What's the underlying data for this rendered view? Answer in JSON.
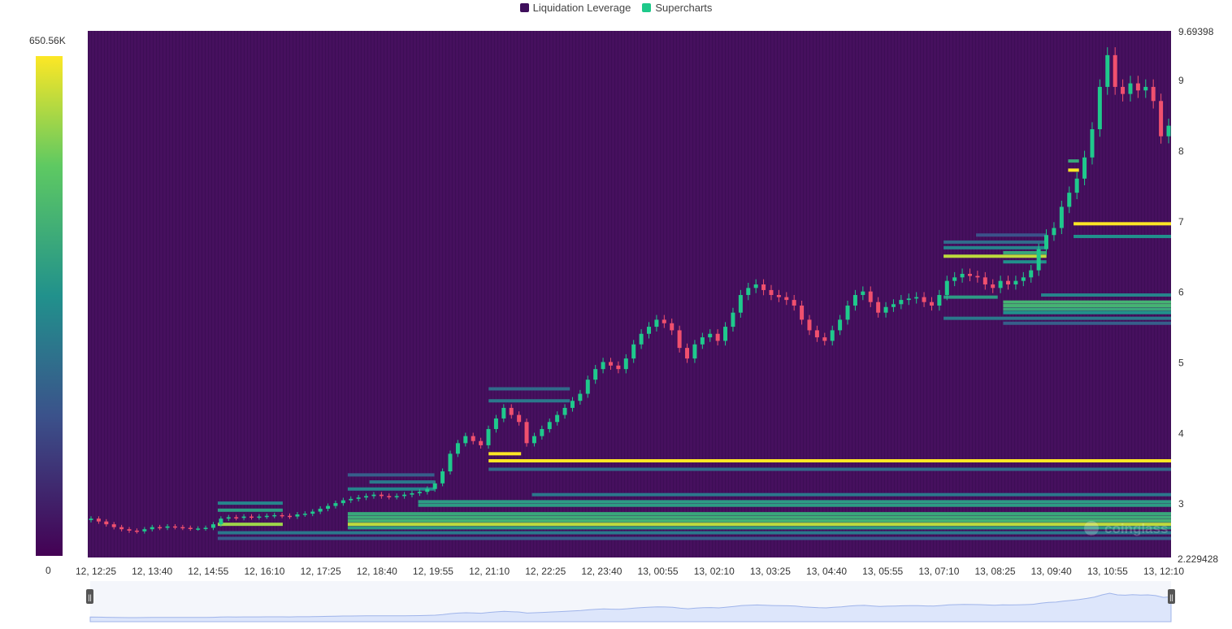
{
  "legend": {
    "items": [
      {
        "label": "Liquidation Leverage",
        "color": "#3f0f5c"
      },
      {
        "label": "Supercharts",
        "color": "#1ec98a"
      }
    ]
  },
  "colorbar": {
    "max_label": "650.56K",
    "min_label": "0",
    "colors": [
      "#440154",
      "#3b528b",
      "#21918c",
      "#5ec962",
      "#fde725"
    ]
  },
  "chart_data": {
    "type": "heatmap",
    "title": "",
    "x_tick_labels": [
      "12, 12:25",
      "12, 13:40",
      "12, 14:55",
      "12, 16:10",
      "12, 17:25",
      "12, 18:40",
      "12, 19:55",
      "12, 21:10",
      "12, 22:25",
      "12, 23:40",
      "13, 00:55",
      "13, 02:10",
      "13, 03:25",
      "13, 04:40",
      "13, 05:55",
      "13, 07:10",
      "13, 08:25",
      "13, 09:40",
      "13, 10:55",
      "13, 12:10"
    ],
    "y_tick_values": [
      9,
      8,
      7,
      6,
      5,
      4,
      3
    ],
    "y_max_label": "9.69398",
    "y_min_label": "2.229428",
    "ylim": [
      2.229428,
      9.69398
    ],
    "colorscale_range": [
      0,
      650560
    ],
    "price_path": [
      2.78,
      2.74,
      2.7,
      2.66,
      2.63,
      2.61,
      2.6,
      2.63,
      2.66,
      2.65,
      2.67,
      2.66,
      2.65,
      2.64,
      2.64,
      2.65,
      2.7,
      2.78,
      2.8,
      2.79,
      2.81,
      2.8,
      2.81,
      2.82,
      2.83,
      2.82,
      2.81,
      2.84,
      2.85,
      2.88,
      2.92,
      2.96,
      3.0,
      3.04,
      3.06,
      3.08,
      3.1,
      3.12,
      3.1,
      3.09,
      3.1,
      3.12,
      3.14,
      3.16,
      3.2,
      3.28,
      3.45,
      3.7,
      3.85,
      3.95,
      3.88,
      3.82,
      4.05,
      4.2,
      4.35,
      4.25,
      4.15,
      3.85,
      3.95,
      4.05,
      4.15,
      4.25,
      4.35,
      4.45,
      4.55,
      4.75,
      4.9,
      5.0,
      4.95,
      4.9,
      5.05,
      5.25,
      5.4,
      5.5,
      5.6,
      5.55,
      5.45,
      5.2,
      5.05,
      5.25,
      5.35,
      5.4,
      5.3,
      5.5,
      5.7,
      5.95,
      6.05,
      6.1,
      6.02,
      5.95,
      5.92,
      5.88,
      5.8,
      5.6,
      5.45,
      5.35,
      5.3,
      5.45,
      5.6,
      5.8,
      5.95,
      6.0,
      5.85,
      5.7,
      5.78,
      5.82,
      5.88,
      5.9,
      5.92,
      5.85,
      5.8,
      5.95,
      6.15,
      6.2,
      6.25,
      6.22,
      6.2,
      6.1,
      6.05,
      6.15,
      6.1,
      6.15,
      6.2,
      6.3,
      6.6,
      6.8,
      6.9,
      7.2,
      7.4,
      7.6,
      7.9,
      8.3,
      8.9,
      9.35,
      8.9,
      8.8,
      8.95,
      8.85,
      8.9,
      8.7,
      8.2,
      8.35
    ],
    "liquidation_bands": [
      {
        "price": 3.6,
        "x_start": 0.37,
        "x_end": 1.0,
        "intensity": 1.0
      },
      {
        "price": 3.48,
        "x_start": 0.37,
        "x_end": 1.0,
        "intensity": 0.35
      },
      {
        "price": 3.7,
        "x_start": 0.37,
        "x_end": 0.4,
        "intensity": 1.0
      },
      {
        "price": 4.62,
        "x_start": 0.37,
        "x_end": 0.445,
        "intensity": 0.35
      },
      {
        "price": 4.45,
        "x_start": 0.37,
        "x_end": 0.445,
        "intensity": 0.4
      },
      {
        "price": 3.12,
        "x_start": 0.41,
        "x_end": 1.0,
        "intensity": 0.4
      },
      {
        "price": 3.02,
        "x_start": 0.305,
        "x_end": 1.0,
        "intensity": 0.55
      },
      {
        "price": 2.97,
        "x_start": 0.305,
        "x_end": 1.0,
        "intensity": 0.55
      },
      {
        "price": 2.85,
        "x_start": 0.24,
        "x_end": 1.0,
        "intensity": 0.6
      },
      {
        "price": 2.8,
        "x_start": 0.24,
        "x_end": 1.0,
        "intensity": 0.62
      },
      {
        "price": 2.75,
        "x_start": 0.24,
        "x_end": 1.0,
        "intensity": 0.65
      },
      {
        "price": 2.7,
        "x_start": 0.24,
        "x_end": 1.0,
        "intensity": 0.9
      },
      {
        "price": 2.65,
        "x_start": 0.24,
        "x_end": 1.0,
        "intensity": 0.55
      },
      {
        "price": 2.58,
        "x_start": 0.12,
        "x_end": 1.0,
        "intensity": 0.4
      },
      {
        "price": 2.5,
        "x_start": 0.12,
        "x_end": 1.0,
        "intensity": 0.28
      },
      {
        "price": 3.4,
        "x_start": 0.24,
        "x_end": 0.32,
        "intensity": 0.3
      },
      {
        "price": 3.3,
        "x_start": 0.26,
        "x_end": 0.32,
        "intensity": 0.4
      },
      {
        "price": 3.2,
        "x_start": 0.24,
        "x_end": 0.32,
        "intensity": 0.45
      },
      {
        "price": 3.0,
        "x_start": 0.12,
        "x_end": 0.18,
        "intensity": 0.45
      },
      {
        "price": 2.9,
        "x_start": 0.12,
        "x_end": 0.18,
        "intensity": 0.55
      },
      {
        "price": 2.7,
        "x_start": 0.12,
        "x_end": 0.18,
        "intensity": 0.85
      },
      {
        "price": 5.95,
        "x_start": 0.88,
        "x_end": 1.0,
        "intensity": 0.45
      },
      {
        "price": 5.85,
        "x_start": 0.845,
        "x_end": 1.0,
        "intensity": 0.65
      },
      {
        "price": 5.8,
        "x_start": 0.845,
        "x_end": 1.0,
        "intensity": 0.65
      },
      {
        "price": 5.75,
        "x_start": 0.845,
        "x_end": 1.0,
        "intensity": 0.6
      },
      {
        "price": 5.7,
        "x_start": 0.845,
        "x_end": 1.0,
        "intensity": 0.5
      },
      {
        "price": 5.62,
        "x_start": 0.79,
        "x_end": 1.0,
        "intensity": 0.4
      },
      {
        "price": 5.55,
        "x_start": 0.845,
        "x_end": 1.0,
        "intensity": 0.3
      },
      {
        "price": 5.92,
        "x_start": 0.79,
        "x_end": 0.84,
        "intensity": 0.55
      },
      {
        "price": 6.8,
        "x_start": 0.82,
        "x_end": 0.885,
        "intensity": 0.25
      },
      {
        "price": 6.7,
        "x_start": 0.79,
        "x_end": 0.885,
        "intensity": 0.35
      },
      {
        "price": 6.62,
        "x_start": 0.79,
        "x_end": 0.885,
        "intensity": 0.45
      },
      {
        "price": 6.55,
        "x_start": 0.845,
        "x_end": 0.885,
        "intensity": 0.6
      },
      {
        "price": 6.5,
        "x_start": 0.79,
        "x_end": 0.885,
        "intensity": 0.9
      },
      {
        "price": 6.42,
        "x_start": 0.845,
        "x_end": 0.885,
        "intensity": 0.5
      },
      {
        "price": 6.96,
        "x_start": 0.91,
        "x_end": 1.0,
        "intensity": 1.0
      },
      {
        "price": 6.78,
        "x_start": 0.91,
        "x_end": 1.0,
        "intensity": 0.5
      },
      {
        "price": 7.72,
        "x_start": 0.905,
        "x_end": 0.915,
        "intensity": 1.0
      },
      {
        "price": 7.85,
        "x_start": 0.905,
        "x_end": 0.915,
        "intensity": 0.6
      }
    ]
  },
  "watermark": "coinglass",
  "navigator": {
    "left_handle": "||",
    "right_handle": "||"
  }
}
